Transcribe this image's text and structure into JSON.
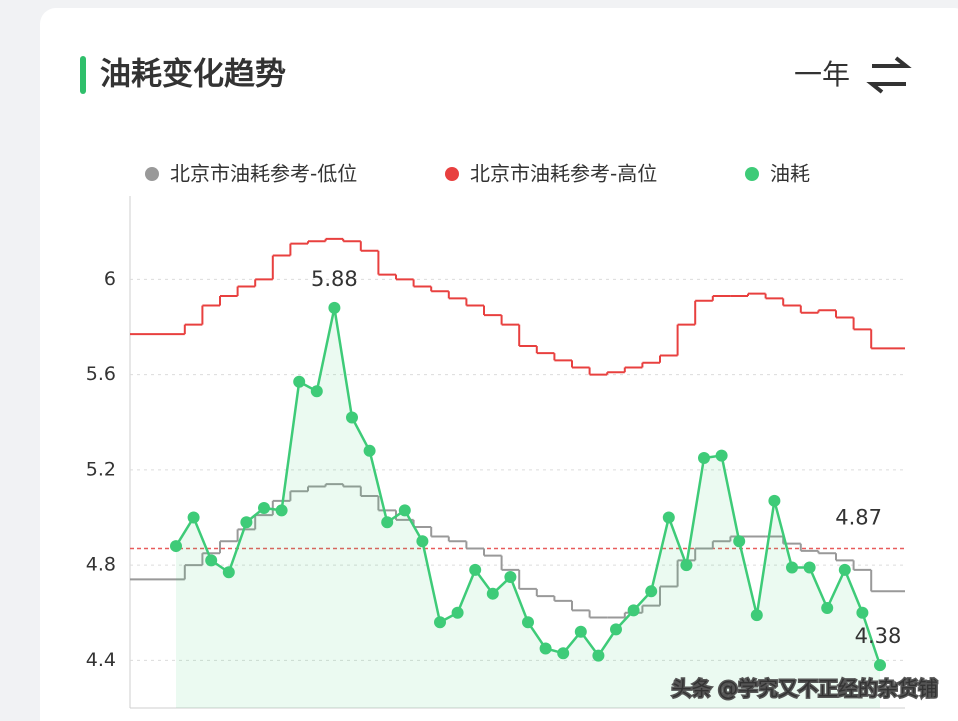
{
  "chart_data": {
    "type": "line",
    "title": "油耗变化趋势",
    "period": "一年",
    "categories": [
      null,
      null,
      null,
      null,
      null,
      null,
      null,
      null,
      null,
      null,
      null,
      null,
      null,
      null,
      null,
      null,
      null,
      null,
      null,
      null,
      null,
      null,
      null,
      null,
      null,
      null,
      null,
      null,
      null,
      null,
      null,
      null,
      null,
      null,
      null,
      null,
      null,
      null,
      null,
      null,
      null
    ],
    "series": [
      {
        "name": "北京市油耗参考-低位",
        "color": "#999999",
        "style": "step",
        "values": [
          4.74,
          4.8,
          4.85,
          4.9,
          4.95,
          5.01,
          5.07,
          5.11,
          5.13,
          5.14,
          5.13,
          5.09,
          5.03,
          4.99,
          4.96,
          4.92,
          4.9,
          4.87,
          4.84,
          4.78,
          4.7,
          4.67,
          4.65,
          4.61,
          4.58,
          4.58,
          4.6,
          4.63,
          4.71,
          4.82,
          4.87,
          4.9,
          4.92,
          4.92,
          4.92,
          4.89,
          4.86,
          4.85,
          4.82,
          4.78,
          4.69
        ]
      },
      {
        "name": "北京市油耗参考-高位",
        "color": "#e8403f",
        "style": "step",
        "values": [
          5.77,
          5.81,
          5.89,
          5.93,
          5.97,
          6.0,
          6.1,
          6.15,
          6.16,
          6.17,
          6.16,
          6.12,
          6.02,
          6.0,
          5.97,
          5.95,
          5.92,
          5.89,
          5.85,
          5.81,
          5.72,
          5.69,
          5.66,
          5.63,
          5.6,
          5.61,
          5.63,
          5.65,
          5.68,
          5.81,
          5.91,
          5.93,
          5.93,
          5.94,
          5.92,
          5.89,
          5.86,
          5.87,
          5.84,
          5.79,
          5.71
        ]
      },
      {
        "name": "油耗",
        "color": "#3ecb78",
        "style": "points",
        "values": [
          4.88,
          5.0,
          4.82,
          4.77,
          4.98,
          5.04,
          5.03,
          5.57,
          5.53,
          5.88,
          5.42,
          5.28,
          4.98,
          5.03,
          4.9,
          4.56,
          4.6,
          4.78,
          4.68,
          4.75,
          4.56,
          4.45,
          4.43,
          4.52,
          4.42,
          4.53,
          4.61,
          4.69,
          5.0,
          4.8,
          5.25,
          5.26,
          4.9,
          4.59,
          5.07,
          4.79,
          4.79,
          4.62,
          4.78,
          4.6,
          4.38
        ]
      }
    ],
    "label_extremes": true,
    "reference_value": 4.87,
    "reference_color": "#e85c5c",
    "ylim": [
      4.2,
      6.35
    ],
    "yticks": [
      4.4,
      4.8,
      5.2,
      5.6,
      6.0
    ],
    "grid": true,
    "legend": "top",
    "watermark": "头条 @学究又不正经的杂货铺"
  }
}
